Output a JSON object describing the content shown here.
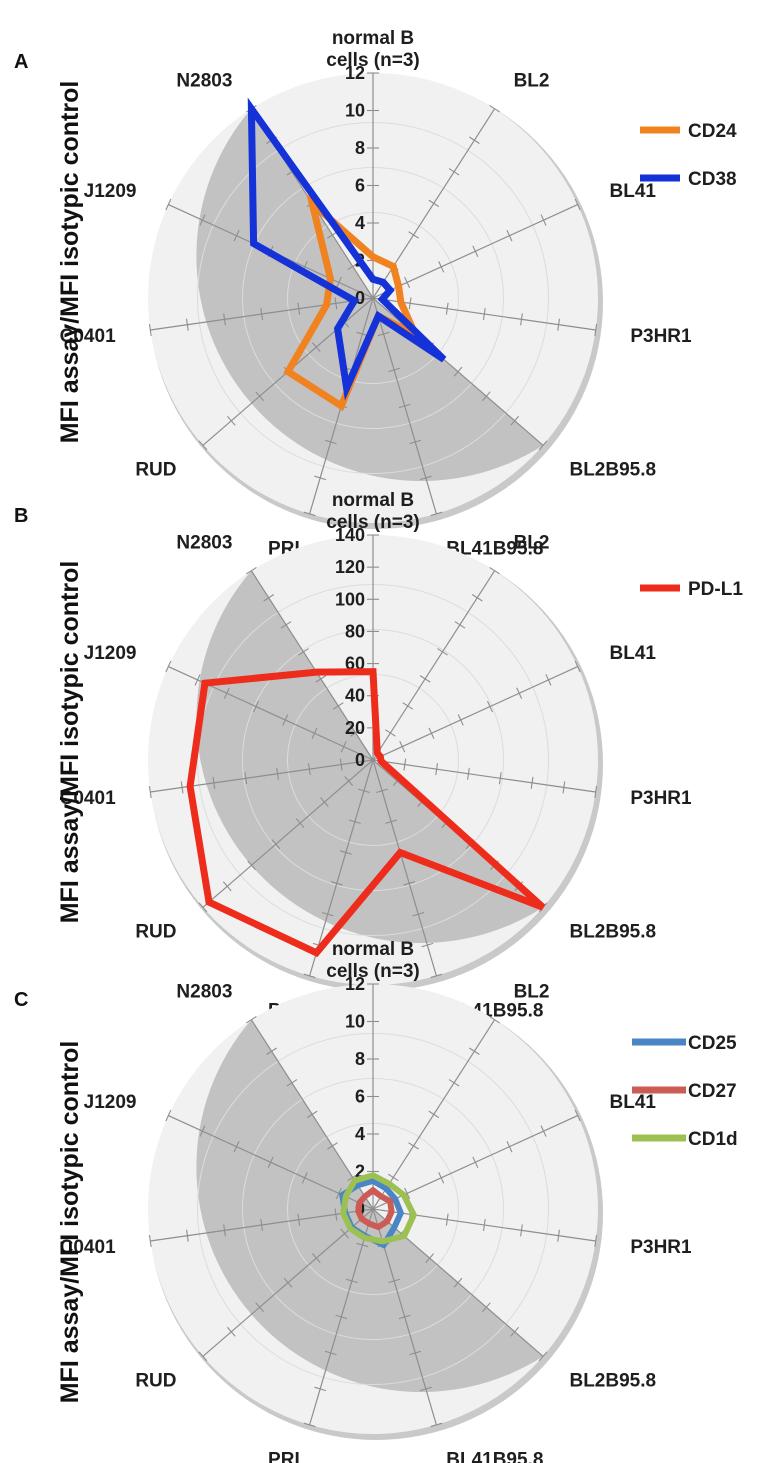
{
  "y_axis_label": "MFI assay/MFI isotypic control",
  "legend_colors": {
    "CD24": "#f0821f",
    "CD38": "#1432d8",
    "PD-L1": "#ee2c1c",
    "CD25": "#4a86c5",
    "CD27": "#cd5b55",
    "CD1d": "#9cc152"
  },
  "chart_data": [
    {
      "type": "radar",
      "panel": "A",
      "categories": [
        "normal B cells (n=3)",
        "BL2",
        "BL41",
        "P3HR1",
        "BL2B95.8",
        "BL41B95.8",
        "PRI",
        "RUD",
        "C0401",
        "J1209",
        "N2803"
      ],
      "category_lines": [
        [
          "normal B",
          "cells (n=3)"
        ],
        [
          "BL2"
        ],
        [
          "BL41"
        ],
        [
          "P3HR1"
        ],
        [
          "BL2B95.8"
        ],
        [
          "BL41B95.8"
        ],
        [
          "PRI"
        ],
        [
          "RUD"
        ],
        [
          "C0401"
        ],
        [
          "J1209"
        ],
        [
          "N2803"
        ]
      ],
      "ticks": [
        "0",
        "2",
        "4",
        "6",
        "8",
        "10",
        "12"
      ],
      "rmax": 12,
      "series": [
        {
          "name": "CD24",
          "values": [
            2.2,
            2.0,
            1.5,
            1.5,
            3.0,
            1.0,
            6.0,
            6.0,
            2.5,
            2.5,
            6.0
          ]
        },
        {
          "name": "CD38",
          "values": [
            1.0,
            1.0,
            1.0,
            0.5,
            5.0,
            1.0,
            5.0,
            2.5,
            1.0,
            7.0,
            12.0
          ]
        }
      ]
    },
    {
      "type": "radar",
      "panel": "B",
      "categories": [
        "normal B cells (n=3)",
        "BL2",
        "BL41",
        "P3HR1",
        "BL2B95.8",
        "BL41B95.8",
        "PRI",
        "RUD",
        "C0401",
        "J1209",
        "N2803"
      ],
      "category_lines": [
        [
          "normal B",
          "cells (n=3)"
        ],
        [
          "BL2"
        ],
        [
          "BL41"
        ],
        [
          "P3HR1"
        ],
        [
          "BL2B95.8"
        ],
        [
          "BL41B95.8"
        ],
        [
          "PRI"
        ],
        [
          "RUD"
        ],
        [
          "C0401"
        ],
        [
          "J1209"
        ],
        [
          "N2803"
        ]
      ],
      "ticks": [
        "0",
        "20",
        "40",
        "60",
        "80",
        "100",
        "120",
        "140"
      ],
      "rmax": 140,
      "series": [
        {
          "name": "PD-L1",
          "values": [
            55,
            5,
            5,
            5,
            140,
            60,
            125,
            135,
            115,
            115,
            65
          ]
        }
      ]
    },
    {
      "type": "radar",
      "panel": "C",
      "categories": [
        "normal B cells (n=3)",
        "BL2",
        "BL41",
        "P3HR1",
        "BL2B95.8",
        "BL41B95.8",
        "PRI",
        "RUD",
        "C0401",
        "J1209",
        "N2803"
      ],
      "category_lines": [
        [
          "normal B",
          "cells (n=3)"
        ],
        [
          "BL2"
        ],
        [
          "BL41"
        ],
        [
          "P3HR1"
        ],
        [
          "BL2B95.8"
        ],
        [
          "BL41B95.8"
        ],
        [
          "PRI"
        ],
        [
          "RUD"
        ],
        [
          "C0401"
        ],
        [
          "J1209"
        ],
        [
          "N2803"
        ]
      ],
      "ticks": [
        "0",
        "2",
        "4",
        "6",
        "8",
        "10",
        "12"
      ],
      "rmax": 12,
      "series": [
        {
          "name": "CD25",
          "values": [
            1.5,
            1.3,
            1.3,
            1.5,
            1.5,
            2.0,
            1.5,
            1.5,
            1.5,
            1.8,
            1.5
          ]
        },
        {
          "name": "CD27",
          "values": [
            1.0,
            0.8,
            1.0,
            1.0,
            1.0,
            1.0,
            0.8,
            0.8,
            0.8,
            0.8,
            0.8
          ]
        },
        {
          "name": "CD1d",
          "values": [
            1.8,
            1.6,
            1.8,
            2.2,
            2.2,
            1.8,
            1.6,
            1.6,
            1.6,
            1.6,
            1.8
          ]
        }
      ]
    }
  ]
}
